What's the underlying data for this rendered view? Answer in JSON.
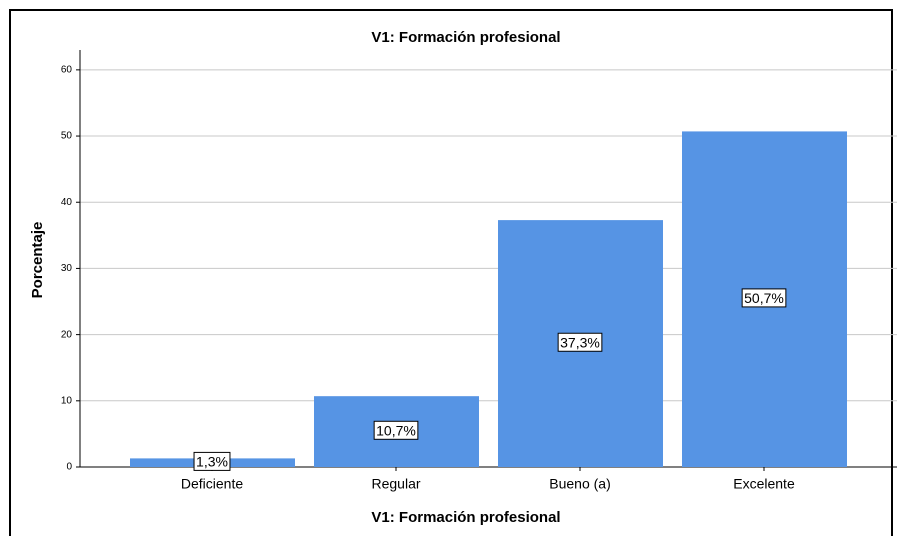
{
  "chart_data": {
    "type": "bar",
    "title": "V1: Formación profesional",
    "x_label": "V1: Formación profesional",
    "y_label": "Porcentaje",
    "categories": [
      "Deficiente",
      "Regular",
      "Bueno (a)",
      "Excelente"
    ],
    "values": [
      1.3,
      10.7,
      37.3,
      50.7
    ],
    "value_labels": [
      "1,3%",
      "10,7%",
      "37,3%",
      "50,7%"
    ],
    "color": "#5694e4",
    "ylim": [
      0,
      63
    ],
    "yticks": [
      0,
      10,
      20,
      30,
      40,
      50,
      60
    ],
    "grid": true
  }
}
